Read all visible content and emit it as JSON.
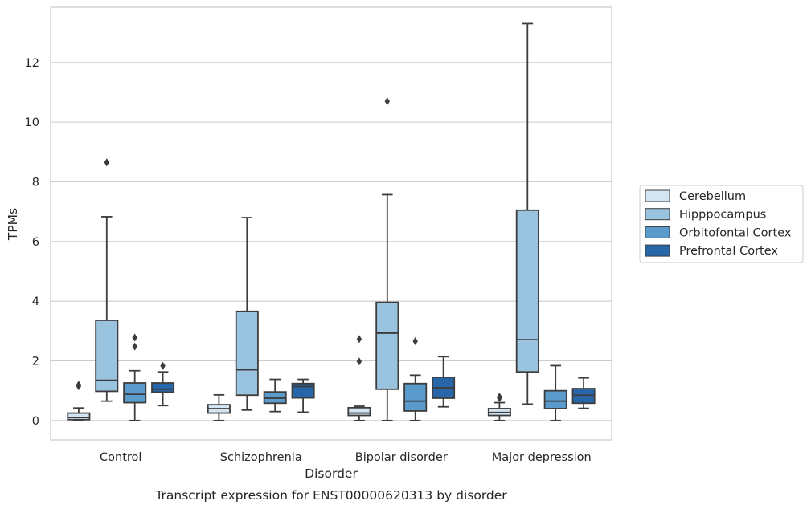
{
  "chart_data": {
    "type": "box",
    "xlabel": "Disorder",
    "ylabel": "TPMs",
    "caption": "Transcript expression for ENST00000620313 by disorder",
    "categories": [
      "Control",
      "Schizophrenia",
      "Bipolar disorder",
      "Major depression"
    ],
    "ylim": [
      -0.65,
      13.85
    ],
    "yticks": [
      0,
      2,
      4,
      6,
      8,
      10,
      12
    ],
    "grid": "horizontal",
    "legend_position": "right",
    "series": [
      {
        "name": "Cerebellum",
        "color": "#d4e4f1",
        "boxes": [
          {
            "whislo": 0.0,
            "q1": 0.03,
            "med": 0.1,
            "q3": 0.25,
            "whishi": 0.42,
            "fliers": [
              1.2,
              1.15
            ]
          },
          {
            "whislo": 0.0,
            "q1": 0.25,
            "med": 0.4,
            "q3": 0.53,
            "whishi": 0.86,
            "fliers": []
          },
          {
            "whislo": 0.0,
            "q1": 0.17,
            "med": 0.25,
            "q3": 0.43,
            "whishi": 0.48,
            "fliers": [
              2.73,
              1.98
            ]
          },
          {
            "whislo": 0.0,
            "q1": 0.17,
            "med": 0.27,
            "q3": 0.4,
            "whishi": 0.6,
            "fliers": [
              0.8,
              0.75
            ]
          }
        ]
      },
      {
        "name": "Hipppocampus",
        "color": "#9ac3e0",
        "boxes": [
          {
            "whislo": 0.65,
            "q1": 0.98,
            "med": 1.35,
            "q3": 3.36,
            "whishi": 6.83,
            "fliers": [
              8.65
            ]
          },
          {
            "whislo": 0.35,
            "q1": 0.85,
            "med": 1.7,
            "q3": 3.66,
            "whishi": 6.8,
            "fliers": []
          },
          {
            "whislo": 0.0,
            "q1": 1.05,
            "med": 2.93,
            "q3": 3.96,
            "whishi": 7.57,
            "fliers": [
              10.7
            ]
          },
          {
            "whislo": 0.55,
            "q1": 1.63,
            "med": 2.71,
            "q3": 7.05,
            "whishi": 13.3,
            "fliers": []
          }
        ]
      },
      {
        "name": "Orbitofontal Cortex",
        "color": "#5a9bcb",
        "boxes": [
          {
            "whislo": 0.0,
            "q1": 0.6,
            "med": 0.88,
            "q3": 1.26,
            "whishi": 1.67,
            "fliers": [
              2.78,
              2.48
            ]
          },
          {
            "whislo": 0.3,
            "q1": 0.58,
            "med": 0.75,
            "q3": 0.96,
            "whishi": 1.38,
            "fliers": []
          },
          {
            "whislo": 0.0,
            "q1": 0.32,
            "med": 0.65,
            "q3": 1.24,
            "whishi": 1.52,
            "fliers": [
              2.66
            ]
          },
          {
            "whislo": 0.0,
            "q1": 0.4,
            "med": 0.65,
            "q3": 1.0,
            "whishi": 1.84,
            "fliers": []
          }
        ]
      },
      {
        "name": "Prefrontal Cortex",
        "color": "#2766a8",
        "boxes": [
          {
            "whislo": 0.5,
            "q1": 0.95,
            "med": 1.05,
            "q3": 1.26,
            "whishi": 1.63,
            "fliers": [
              1.83
            ]
          },
          {
            "whislo": 0.28,
            "q1": 0.76,
            "med": 1.14,
            "q3": 1.24,
            "whishi": 1.38,
            "fliers": []
          },
          {
            "whislo": 0.46,
            "q1": 0.75,
            "med": 1.1,
            "q3": 1.45,
            "whishi": 2.14,
            "fliers": []
          },
          {
            "whislo": 0.41,
            "q1": 0.58,
            "med": 0.85,
            "q3": 1.07,
            "whishi": 1.43,
            "fliers": []
          }
        ]
      }
    ]
  }
}
